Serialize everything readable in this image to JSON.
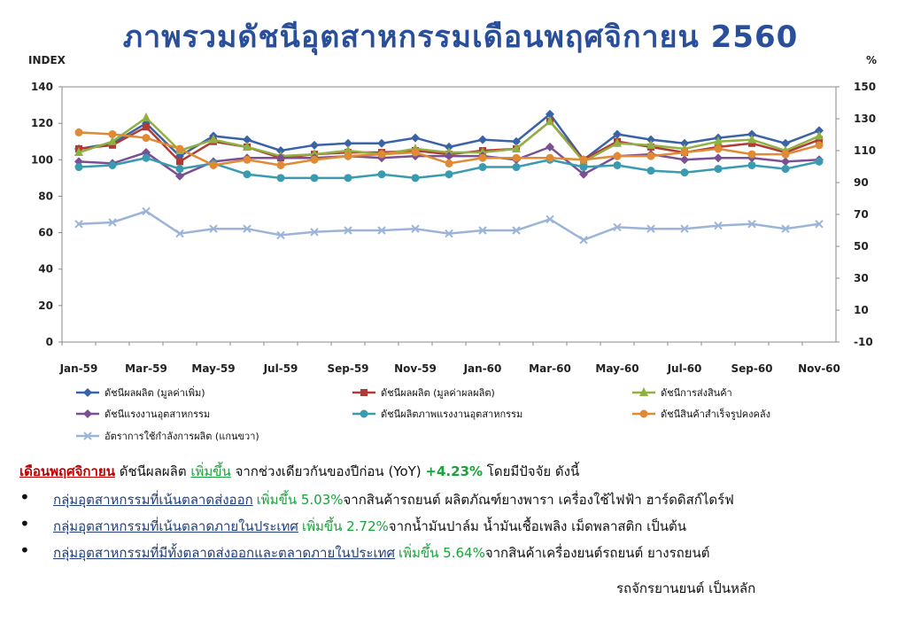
{
  "title": "ภาพรวมดัชนีอุตสาหกรรมเดือนพฤศจิกายน 2560",
  "chart_data": {
    "type": "line",
    "ylabel_left": "INDEX",
    "ylabel_right": "%",
    "ylim_left": [
      0,
      140
    ],
    "yticks_left": [
      0,
      20,
      40,
      60,
      80,
      100,
      120,
      140
    ],
    "ylim_right": [
      -10,
      150
    ],
    "yticks_right": [
      -10,
      10,
      30,
      50,
      70,
      90,
      110,
      130,
      150
    ],
    "x": [
      "Jan-59",
      "Feb-59",
      "Mar-59",
      "Apr-59",
      "May-59",
      "Jun-59",
      "Jul-59",
      "Aug-59",
      "Sep-59",
      "Oct-59",
      "Nov-59",
      "Dec-59",
      "Jan-60",
      "Feb-60",
      "Mar-60",
      "Apr-60",
      "May-60",
      "Jun-60",
      "Jul-60",
      "Aug-60",
      "Sep-60",
      "Oct-60",
      "Nov-60"
    ],
    "xtick_labels": [
      "Jan-59",
      "Mar-59",
      "May-59",
      "Jul-59",
      "Sep-59",
      "Nov-59",
      "Jan-60",
      "Mar-60",
      "May-60",
      "Jul-60",
      "Sep-60",
      "Nov-60"
    ],
    "legend_position": "bottom",
    "grid": false,
    "series": [
      {
        "name": "ดัชนีผลผลิต (มูลค่าเพิ่ม)",
        "color": "#3a62a7",
        "marker": "diamond",
        "axis": "left",
        "values": [
          106,
          109,
          120,
          102,
          113,
          111,
          105,
          108,
          109,
          109,
          112,
          107,
          111,
          110,
          125,
          100,
          114,
          111,
          109,
          112,
          114,
          109,
          116
        ]
      },
      {
        "name": "ดัชนีผลผลิต (มูลค่าผลผลิต)",
        "color": "#b03a36",
        "marker": "square",
        "axis": "left",
        "values": [
          106,
          108,
          118,
          99,
          110,
          107,
          101,
          103,
          104,
          104,
          105,
          103,
          105,
          106,
          121,
          100,
          110,
          107,
          104,
          107,
          109,
          104,
          111
        ]
      },
      {
        "name": "ดัชนีการส่งสินค้า",
        "color": "#8fb142",
        "marker": "triangle",
        "axis": "left",
        "values": [
          104,
          110,
          123,
          105,
          111,
          107,
          102,
          103,
          105,
          103,
          106,
          104,
          104,
          106,
          121,
          99,
          109,
          108,
          106,
          110,
          111,
          105,
          113
        ]
      },
      {
        "name": "ดัชนีแรงงานอุตสาหกรรม",
        "color": "#7a4f94",
        "marker": "diamond",
        "axis": "left",
        "values": [
          99,
          98,
          104,
          91,
          99,
          101,
          101,
          101,
          102,
          101,
          102,
          102,
          102,
          100,
          107,
          92,
          102,
          103,
          100,
          101,
          101,
          99,
          100
        ]
      },
      {
        "name": "ดัชนีผลิตภาพแรงงานอุตสาหกรรม",
        "color": "#3a9bb0",
        "marker": "circle",
        "axis": "left",
        "values": [
          96,
          97,
          101,
          95,
          98,
          92,
          90,
          90,
          90,
          92,
          90,
          92,
          96,
          96,
          100,
          96,
          97,
          94,
          93,
          95,
          97,
          95,
          99
        ]
      },
      {
        "name": "ดัชนีสินค้าสำเร็จรูปคงคลัง",
        "color": "#e08a35",
        "marker": "circle",
        "axis": "left",
        "values": [
          115,
          114,
          112,
          106,
          97,
          100,
          97,
          100,
          102,
          103,
          104,
          98,
          101,
          101,
          101,
          100,
          102,
          102,
          104,
          106,
          103,
          103,
          108
        ]
      },
      {
        "name": "อัตราการใช้กำลังการผลิต (แกนขวา)",
        "color": "#9cb4d8",
        "marker": "cross",
        "axis": "right",
        "values": [
          64,
          65,
          72,
          58,
          61,
          61,
          57,
          59,
          60,
          60,
          61,
          58,
          60,
          60,
          67,
          54,
          62,
          61,
          61,
          63,
          64,
          61,
          64
        ]
      }
    ]
  },
  "summary": {
    "month": "เดือนพฤศจิกายน",
    "text1": " ดัชนีผลผลิต ",
    "increase": "เพิ่มขึ้น",
    "text2": " จากช่วงเดียวกันของปีก่อน (YoY) ",
    "value": "+4.23%",
    "text3": " โดยมีปัจจัย ดังนี้"
  },
  "bullets": [
    {
      "category": "กลุ่มอุตสาหกรรมที่เน้นตลาดส่งออก",
      "change": "เพิ่มขึ้น 5.03%",
      "detail": " จากสินค้ารถยนต์ ผลิตภัณฑ์ยางพารา เครื่องใช้ไฟฟ้า ฮาร์ดดิสก์ไดร์ฟ"
    },
    {
      "category": "กลุ่มอุตสาหกรรมที่เน้นตลาดภายในประเทศ",
      "change": "เพิ่มขึ้น 2.72%",
      "detail": " จากน้ำมันปาล์ม น้ำมันเชื้อเพลิง เม็ดพลาสติก เป็นต้น"
    },
    {
      "category": "กลุ่มอุตสาหกรรมที่มีทั้งตลาดส่งออกและตลาดภายในประเทศ",
      "change": "เพิ่มขึ้น 5.64%",
      "detail": " จากสินค้าเครื่องยนต์รถยนต์ ยางรถยนต์"
    }
  ],
  "bullet_continuation": "รถจักรยานยนต์ เป็นหลัก"
}
